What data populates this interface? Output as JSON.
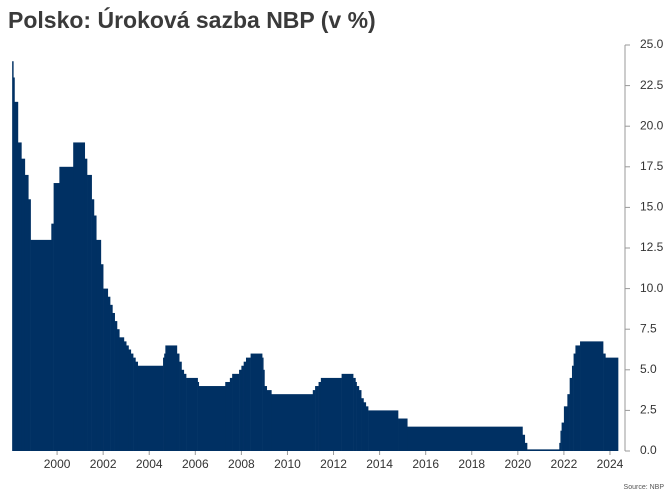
{
  "chart_data": {
    "type": "step-area",
    "title": "Polsko: Úroková sazba NBP (v %)",
    "source": "Source: NBP",
    "color": "#003063",
    "x": [
      1998.05,
      1998.1,
      1998.15,
      1998.3,
      1998.45,
      1998.6,
      1998.75,
      1998.85,
      1999.75,
      1999.85,
      2000.1,
      2000.7,
      2001.2,
      2001.3,
      2001.5,
      2001.6,
      2001.7,
      2001.9,
      2002.0,
      2002.2,
      2002.3,
      2002.4,
      2002.5,
      2002.6,
      2002.7,
      2002.9,
      2003.0,
      2003.1,
      2003.2,
      2003.3,
      2003.4,
      2003.5,
      2004.6,
      2004.65,
      2004.7,
      2005.2,
      2005.3,
      2005.4,
      2005.5,
      2005.6,
      2006.1,
      2006.15,
      2007.3,
      2007.5,
      2007.6,
      2007.9,
      2008.0,
      2008.1,
      2008.2,
      2008.4,
      2008.9,
      2008.95,
      2009.0,
      2009.1,
      2009.3,
      2011.1,
      2011.2,
      2011.35,
      2011.45,
      2012.35,
      2012.85,
      2012.95,
      2013.0,
      2013.1,
      2013.2,
      2013.3,
      2013.4,
      2013.5,
      2014.8,
      2015.2,
      2020.2,
      2020.3,
      2020.4,
      2021.8,
      2021.85,
      2021.9,
      2022.0,
      2022.15,
      2022.25,
      2022.35,
      2022.42,
      2022.5,
      2022.7,
      2023.7,
      2023.8,
      2024.35
    ],
    "values": [
      24,
      23,
      21.5,
      19,
      18,
      17,
      15.5,
      13,
      14,
      16.5,
      17.5,
      19,
      18,
      17,
      15.5,
      14.5,
      13,
      11.5,
      10,
      9.5,
      9,
      8.5,
      8,
      7.5,
      7,
      6.75,
      6.5,
      6.25,
      6,
      5.75,
      5.5,
      5.25,
      5.75,
      6,
      6.5,
      6,
      5.5,
      5,
      4.75,
      4.5,
      4.25,
      4,
      4.25,
      4.5,
      4.75,
      5,
      5.25,
      5.5,
      5.75,
      6,
      5.75,
      5,
      4,
      3.75,
      3.5,
      3.75,
      4,
      4.25,
      4.5,
      4.75,
      4.5,
      4.25,
      4,
      3.75,
      3.25,
      3,
      2.75,
      2.5,
      2,
      1.5,
      1,
      0.5,
      0.1,
      0.5,
      1.25,
      1.75,
      2.75,
      3.5,
      4.5,
      5.25,
      6,
      6.5,
      6.75,
      6,
      5.75,
      5.75
    ],
    "xlim": [
      1998,
      2024.5
    ],
    "xticks": [
      2000,
      2002,
      2004,
      2006,
      2008,
      2010,
      2012,
      2014,
      2016,
      2018,
      2020,
      2022,
      2024
    ],
    "ylim": [
      0,
      25
    ],
    "yticks": [
      {
        "value": 0,
        "label": "0.0"
      },
      {
        "value": 2.5,
        "label": "2.5"
      },
      {
        "value": 5,
        "label": "5.0"
      },
      {
        "value": 7.5,
        "label": "7.5"
      },
      {
        "value": 10,
        "label": "10.0"
      },
      {
        "value": 12.5,
        "label": "12.5"
      },
      {
        "value": 15,
        "label": "15.0"
      },
      {
        "value": 17.5,
        "label": "17.5"
      },
      {
        "value": 20,
        "label": "20.0"
      },
      {
        "value": 22.5,
        "label": "22.5"
      },
      {
        "value": 25,
        "label": "25.0"
      }
    ]
  }
}
